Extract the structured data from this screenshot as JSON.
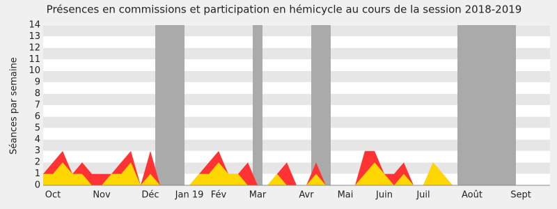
{
  "chart_data": {
    "type": "area",
    "title": "Présences en commissions et participation en hémicycle au cours de la session 2018-2019",
    "y_label": "Séances par semaine",
    "categories": [
      null,
      "Oct",
      null,
      null,
      null,
      null,
      "Nov",
      null,
      null,
      null,
      null,
      "Déc",
      null,
      null,
      null,
      "Jan 19",
      null,
      null,
      "Fév",
      null,
      null,
      null,
      "Mar",
      null,
      null,
      null,
      null,
      "Avr",
      null,
      null,
      null,
      "Mai",
      null,
      null,
      null,
      "Juin",
      null,
      null,
      null,
      "Juil",
      null,
      null,
      null,
      null,
      "Août",
      null,
      null,
      null,
      null,
      "Sept",
      null,
      null,
      null
    ],
    "series": [
      {
        "color": "#ff3333",
        "values": [
          1,
          2,
          3,
          1,
          2,
          1,
          1,
          1,
          2,
          3,
          0,
          3,
          0,
          0,
          0,
          0,
          1,
          2,
          3,
          1,
          1,
          2,
          0,
          0,
          1,
          2,
          0,
          0,
          2,
          0,
          0,
          0,
          0,
          3,
          3,
          1,
          1,
          2,
          0,
          0,
          2,
          1,
          0,
          0,
          0,
          0,
          0,
          0,
          0,
          0,
          0,
          0,
          0
        ]
      },
      {
        "color": "#ffd700",
        "values": [
          1,
          1,
          2,
          1,
          1,
          0,
          0,
          1,
          1,
          2,
          0,
          1,
          0,
          0,
          0,
          0,
          1,
          1,
          2,
          1,
          1,
          0,
          0,
          0,
          1,
          0,
          0,
          0,
          1,
          0,
          0,
          0,
          0,
          1,
          2,
          1,
          0,
          1,
          0,
          0,
          2,
          1,
          0,
          0,
          0,
          0,
          0,
          0,
          0,
          0,
          0,
          0,
          0
        ]
      }
    ],
    "shaded": [
      [
        12,
        14
      ],
      [
        22,
        22
      ],
      [
        28,
        29
      ],
      [
        43,
        48
      ]
    ],
    "shade_color": "#aaaaaa",
    "ylim": [
      0,
      14
    ],
    "yticks": [
      0,
      1,
      2,
      3,
      4,
      5,
      6,
      7,
      8,
      9,
      10,
      11,
      12,
      13,
      14
    ],
    "grid": true
  }
}
